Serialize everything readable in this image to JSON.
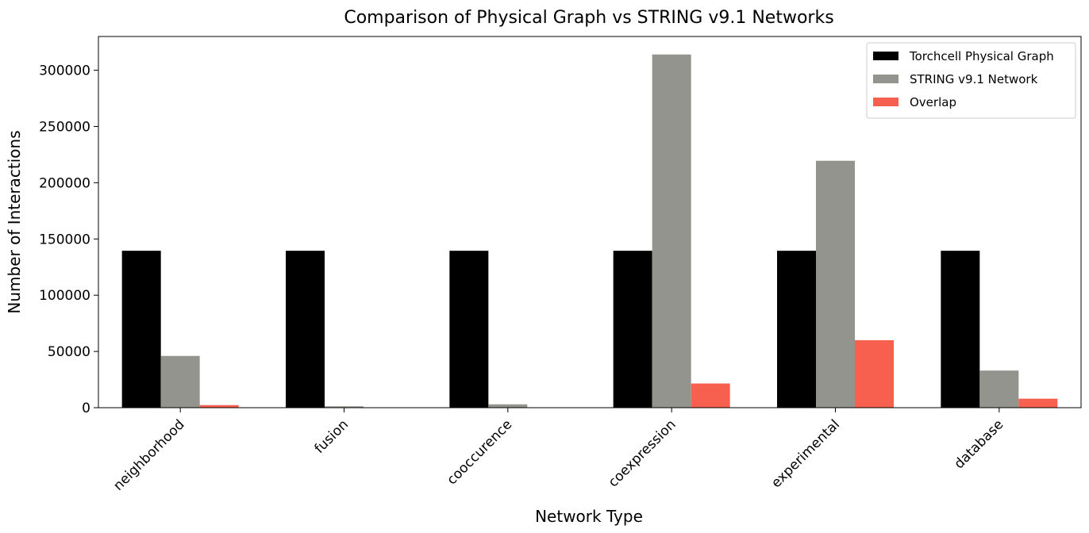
{
  "chart_data": {
    "type": "bar",
    "title": "Comparison of Physical Graph vs STRING v9.1 Networks",
    "xlabel": "Network Type",
    "ylabel": "Number of Interactions",
    "categories": [
      "neighborhood",
      "fusion",
      "cooccurence",
      "coexpression",
      "experimental",
      "database"
    ],
    "series": [
      {
        "name": "Torchcell Physical Graph",
        "color": "#000000",
        "values": [
          139500,
          139500,
          139500,
          139500,
          139500,
          139500
        ]
      },
      {
        "name": "STRING v9.1 Network",
        "color": "#92948d",
        "values": [
          46000,
          1200,
          3000,
          314000,
          219500,
          33000
        ]
      },
      {
        "name": "Overlap",
        "color": "#f75f4f",
        "values": [
          2300,
          150,
          300,
          21500,
          60000,
          8000
        ]
      }
    ],
    "ylim": [
      0,
      330000
    ],
    "yticks": [
      0,
      50000,
      100000,
      150000,
      200000,
      250000,
      300000
    ],
    "grid": false,
    "legend_position": "top-right"
  }
}
